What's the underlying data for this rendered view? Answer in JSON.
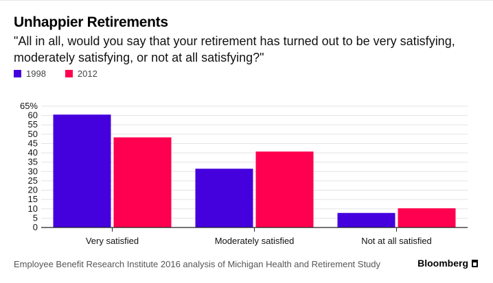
{
  "title": "Unhappier Retirements",
  "subtitle": "\"All in all, would you say that your retirement has turned out to be very satisfying, moderately satisfying, or not at all satisfying?\"",
  "source": "Employee Benefit Research Institute 2016 analysis of Michigan Health and Retirement Study",
  "brand": "Bloomberg",
  "colors": {
    "s1998": "#4400dd",
    "s2012": "#ff0050",
    "grid": "#e3e3e3",
    "axis": "#222222"
  },
  "chart_data": {
    "type": "bar",
    "categories": [
      "Very satisfied",
      "Moderately satisfied",
      "Not at all satisfied"
    ],
    "series": [
      {
        "name": "1998",
        "values": [
          60.5,
          31.5,
          7.8
        ]
      },
      {
        "name": "2012",
        "values": [
          48.3,
          40.7,
          10.3
        ]
      }
    ],
    "ylim": [
      0,
      65
    ],
    "yticks": [
      0,
      5,
      10,
      15,
      20,
      25,
      30,
      35,
      40,
      45,
      50,
      55,
      60,
      65
    ],
    "ytick_labels": [
      "0",
      "5",
      "10",
      "15",
      "20",
      "25",
      "30",
      "35",
      "40",
      "45",
      "50",
      "55",
      "60",
      "65%"
    ],
    "legend_position": "top-left",
    "grid": true
  }
}
